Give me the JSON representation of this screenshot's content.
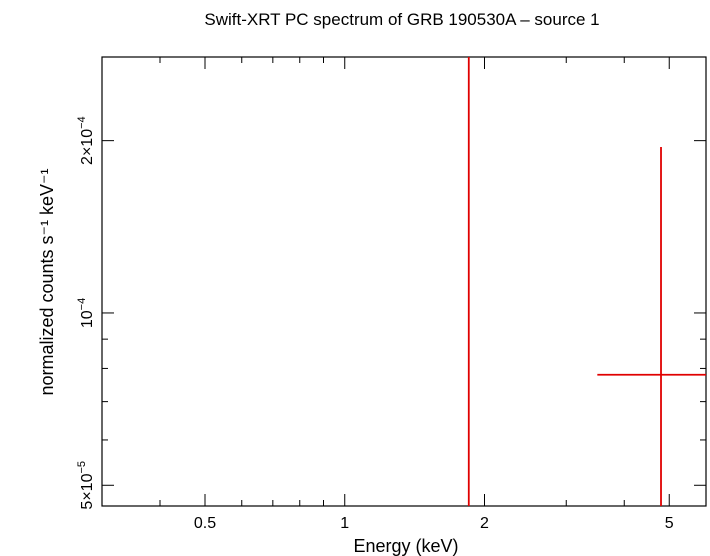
{
  "chart_data": {
    "type": "scatter",
    "title": "Swift-XRT PC spectrum of GRB 190530A – source 1",
    "xlabel": "Energy (keV)",
    "ylabel": "normalized counts s⁻¹ keV⁻¹",
    "xscale": "log",
    "yscale": "log",
    "xlim": [
      0.3,
      6.0
    ],
    "ylim": [
      4.6e-05,
      0.00028
    ],
    "grid": false,
    "x_tick_labels": [
      {
        "value": 0.5,
        "label": "0.5"
      },
      {
        "value": 1,
        "label": "1"
      },
      {
        "value": 2,
        "label": "2"
      },
      {
        "value": 5,
        "label": "5"
      }
    ],
    "y_tick_labels": [
      {
        "value": 5e-05,
        "mant": "5×10",
        "exp": "−5"
      },
      {
        "value": 0.0001,
        "mant": "10",
        "exp": "−4"
      },
      {
        "value": 0.0002,
        "mant": "2×10",
        "exp": "−4"
      }
    ],
    "series": [
      {
        "color": "#e00000",
        "points": [
          {
            "x": 1.85,
            "x_lo": 1.85,
            "x_hi": 1.85,
            "y": 0.0001,
            "y_lo": 4.6e-05,
            "y_hi": 0.00028
          },
          {
            "x": 4.8,
            "x_lo": 3.5,
            "x_hi": 6.0,
            "y": 7.8e-05,
            "y_lo": 4.6e-05,
            "y_hi": 0.000195
          }
        ]
      }
    ]
  }
}
